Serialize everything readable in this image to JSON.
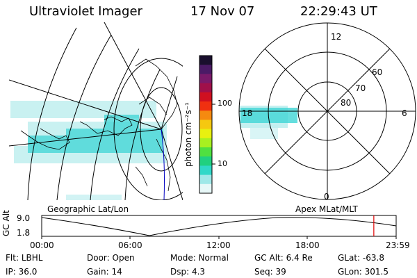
{
  "header": {
    "instrument": "Ultraviolet Imager",
    "date": "17 Nov 07",
    "time": "22:29:43 UT"
  },
  "colorbar": {
    "unit": "photon cm⁻²s⁻¹",
    "tick_labels": [
      "100",
      "10"
    ],
    "colors": [
      "#1a0f2e",
      "#4b1a66",
      "#7a1a6a",
      "#a0104a",
      "#d01020",
      "#f03010",
      "#f58a10",
      "#f5c810",
      "#e8f010",
      "#a8f020",
      "#50e040",
      "#20d080",
      "#30d8c8",
      "#a0e8e8",
      "#e8f8f8"
    ]
  },
  "polar_plot": {
    "mlt_labels": {
      "top": "12",
      "bottom": "0",
      "left": "18",
      "right": "6"
    },
    "lat_labels": [
      "60",
      "70",
      "80"
    ]
  },
  "panel_labels": {
    "left": "Geographic Lat/Lon",
    "right": "Apex MLat/MLT"
  },
  "altitude_strip": {
    "y_label": "GC Alt",
    "y_ticks": [
      "9.0",
      "1.8"
    ],
    "x_ticks": [
      "00:00",
      "06:00",
      "12:00",
      "18:00",
      "23:59"
    ],
    "current_time_fraction": 0.937,
    "marker_color": "#e00000"
  },
  "footer": {
    "row1": [
      {
        "label": "Flt:",
        "value": "LBHL"
      },
      {
        "label": "Door:",
        "value": "Open"
      },
      {
        "label": "Mode:",
        "value": "Normal"
      },
      {
        "label": "GC Alt:",
        "value": "6.4 Re"
      },
      {
        "label": "GLat:",
        "value": "-63.8"
      }
    ],
    "row2": [
      {
        "label": "IP:",
        "value": "36.0"
      },
      {
        "label": "Gain:",
        "value": "14"
      },
      {
        "label": "Dsp:",
        "value": "4.3"
      },
      {
        "label": "Seq:",
        "value": "39"
      },
      {
        "label": "GLon:",
        "value": "301.5"
      }
    ]
  }
}
